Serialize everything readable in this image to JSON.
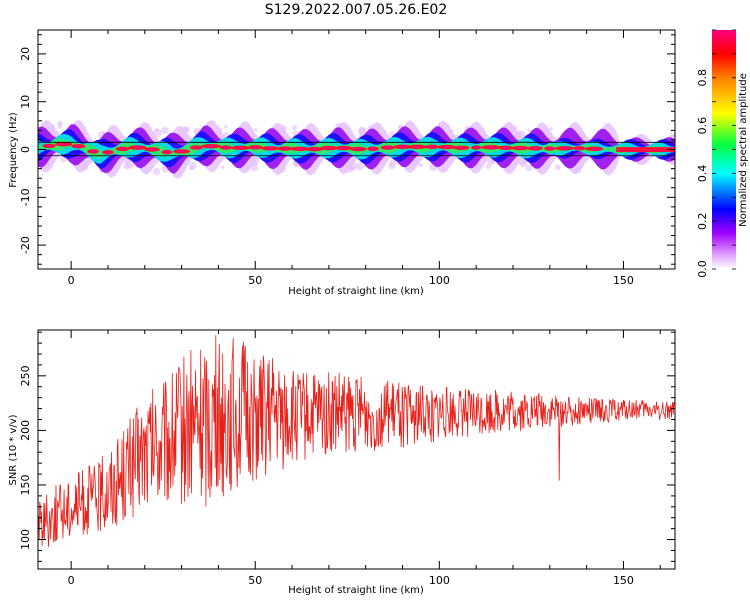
{
  "title": "S129.2022.007.05.26.E02",
  "chart_data": [
    {
      "type": "heatmap",
      "xlabel": "Height of straight line (km)",
      "ylabel": "Frequency (Hz)",
      "xlim": [
        -9,
        164
      ],
      "ylim": [
        -25,
        25
      ],
      "xticks": [
        "0",
        "50",
        "100",
        "150"
      ],
      "yticks": [
        "-20",
        "-10",
        "0",
        "10",
        "20"
      ],
      "colorbar": {
        "label": "Normalized spectral amplitude",
        "range": [
          0,
          1
        ],
        "ticks": [
          "0.0",
          "0.2",
          "0.4",
          "0.6",
          "0.8"
        ],
        "colors": [
          "#ffffff",
          "#c000ff",
          "#0000ff",
          "#00ffff",
          "#00ff00",
          "#ffff00",
          "#ff0000",
          "#ff0080"
        ]
      },
      "ridge": {
        "x": [
          -8,
          -4,
          0,
          4,
          8,
          12,
          16,
          20,
          24,
          28,
          32,
          36,
          40,
          44,
          48,
          52,
          56,
          60,
          64,
          68,
          72,
          76,
          80,
          84,
          88,
          92,
          96,
          100,
          104,
          108,
          112,
          116,
          120,
          124,
          128,
          132,
          136,
          140,
          144,
          148,
          152,
          156,
          160,
          164
        ],
        "y": [
          0.5,
          1.0,
          1.2,
          0.2,
          -1.0,
          -0.2,
          0.5,
          0.3,
          -0.3,
          -0.8,
          0.0,
          0.8,
          0.6,
          0.2,
          0.5,
          0.4,
          0.1,
          0.3,
          0.0,
          0.2,
          0.4,
          0.2,
          0.0,
          0.3,
          0.5,
          0.6,
          0.5,
          0.6,
          0.4,
          0.3,
          0.5,
          0.4,
          0.3,
          0.3,
          0.2,
          0.2,
          0.3,
          0.2,
          0.1,
          0.0,
          0.0,
          0.0,
          0.0,
          0.0
        ]
      }
    },
    {
      "type": "line",
      "xlabel": "Height of straight line (km)",
      "ylabel": "SNR (10 * v/v)",
      "xlim": [
        -9,
        164
      ],
      "ylim": [
        73,
        292
      ],
      "xticks": [
        "0",
        "50",
        "100",
        "150"
      ],
      "yticks": [
        "100",
        "150",
        "200",
        "250"
      ],
      "color": "#e8201a",
      "envelope": {
        "x": [
          -9,
          0,
          8,
          14,
          20,
          26,
          30,
          36,
          40,
          45,
          50,
          55,
          60,
          66,
          72,
          80,
          90,
          100,
          110,
          120,
          130,
          140,
          150,
          156,
          164
        ],
        "mean": [
          115,
          130,
          140,
          160,
          178,
          188,
          200,
          208,
          213,
          215,
          213,
          212,
          212,
          214,
          215,
          214,
          214,
          215,
          216,
          217,
          217,
          218,
          219,
          219,
          218
        ],
        "spread": [
          25,
          30,
          35,
          45,
          55,
          60,
          70,
          80,
          75,
          72,
          60,
          55,
          45,
          40,
          40,
          35,
          30,
          25,
          22,
          20,
          16,
          12,
          10,
          9,
          8
        ]
      }
    }
  ]
}
